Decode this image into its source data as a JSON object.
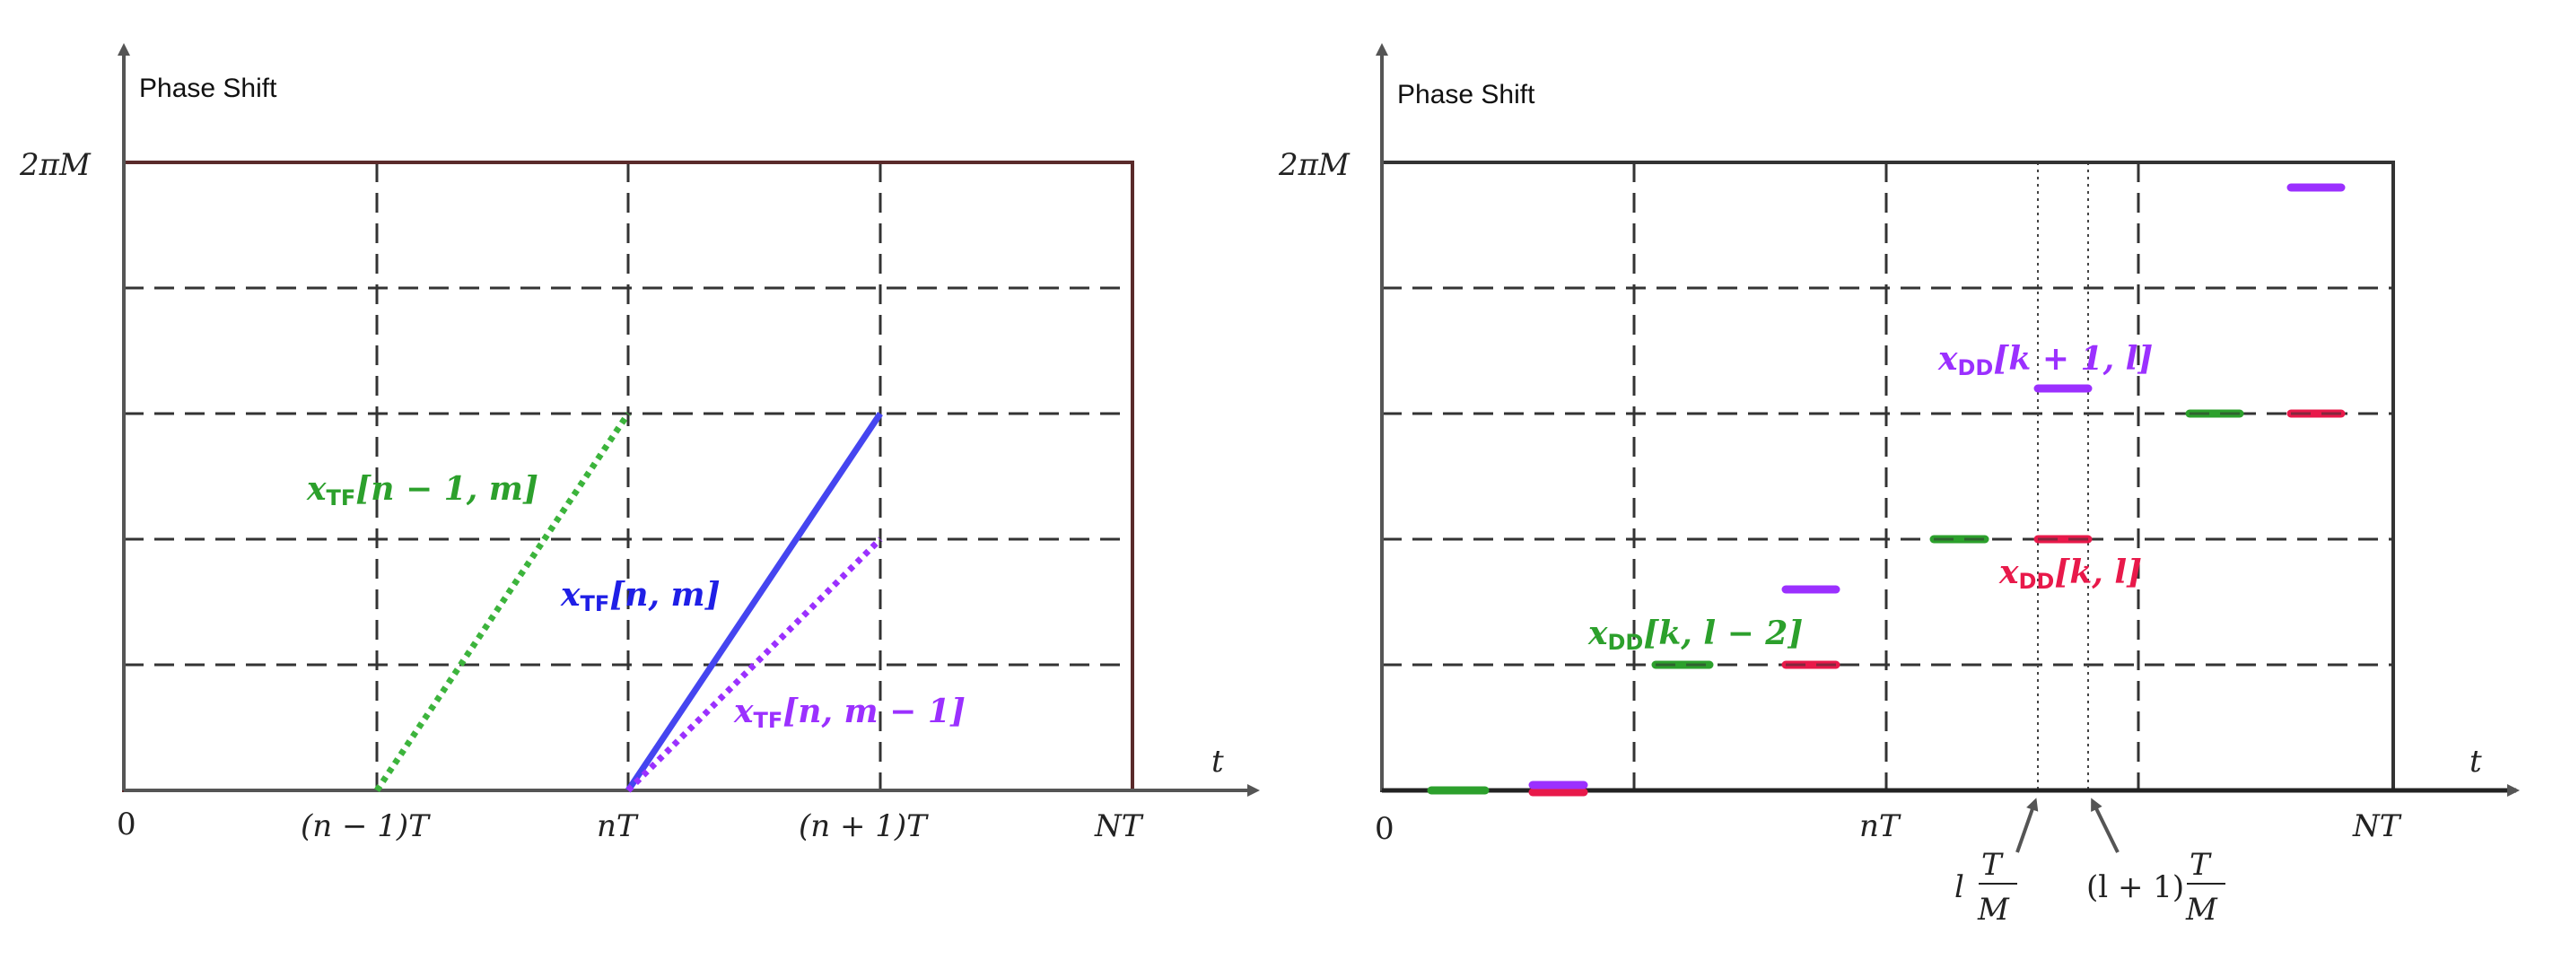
{
  "colors": {
    "green": "#2ca02c",
    "blue": "#1f1fe6",
    "purple": "#9b30ff",
    "red": "#e8194a",
    "frame_left": "#5a2a2a",
    "frame_right": "#333333",
    "grid": "#333333",
    "axis": "#555555"
  },
  "left_panel": {
    "y_axis_label": "Phase Shift",
    "y_top_label": "2πM",
    "t_label": "t",
    "origin_label": "0",
    "x_ticks": [
      "(n − 1)T",
      "nT",
      "(n + 1)T",
      "NT"
    ],
    "curves": [
      {
        "label_var": "x",
        "label_sub": "TF",
        "label_args": "[n − 1, m]",
        "color": "green",
        "style": "dotted"
      },
      {
        "label_var": "x",
        "label_sub": "TF",
        "label_args": "[n, m]",
        "color": "blue",
        "style": "solid"
      },
      {
        "label_var": "x",
        "label_sub": "TF",
        "label_args": "[n, m − 1]",
        "color": "purple",
        "style": "dotted"
      }
    ]
  },
  "right_panel": {
    "y_axis_label": "Phase Shift",
    "y_top_label": "2πM",
    "t_label": "t",
    "origin_label": "0",
    "x_ticks": [
      "nT",
      "NT"
    ],
    "arrow_labels": [
      {
        "coef": "l",
        "num": "T",
        "den": "M"
      },
      {
        "coef": "(l + 1)",
        "num": "T",
        "den": "M"
      }
    ],
    "labels": [
      {
        "var": "x",
        "sub": "DD",
        "args": "[k + 1, l]",
        "color": "purple"
      },
      {
        "var": "x",
        "sub": "DD",
        "args": "[k, l]",
        "color": "red"
      },
      {
        "var": "x",
        "sub": "DD",
        "args": "[k, l − 2]",
        "color": "green"
      }
    ]
  }
}
